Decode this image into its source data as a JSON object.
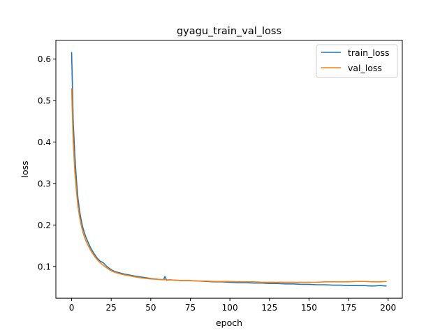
{
  "chart_data": {
    "type": "line",
    "title": "gyagu_train_val_loss",
    "xlabel": "epoch",
    "ylabel": "loss",
    "xlim": [
      -9.95,
      208.95
    ],
    "ylim": [
      0.0237,
      0.6456
    ],
    "xticks": [
      0,
      25,
      50,
      75,
      100,
      125,
      150,
      175,
      200
    ],
    "yticks": [
      0.1,
      0.2,
      0.3,
      0.4,
      0.5,
      0.6
    ],
    "ytick_labels": [
      "0.1",
      "0.2",
      "0.3",
      "0.4",
      "0.5",
      "0.6"
    ],
    "grid": false,
    "legend_position": "top-right",
    "series": [
      {
        "name": "train_loss",
        "color": "#1f77b4",
        "x": [
          0,
          1,
          2,
          3,
          4,
          5,
          6,
          7,
          8,
          9,
          10,
          12,
          14,
          16,
          18,
          20,
          22,
          24,
          26,
          28,
          30,
          33,
          36,
          40,
          45,
          50,
          55,
          58,
          59,
          60,
          62,
          65,
          70,
          75,
          80,
          85,
          90,
          95,
          100,
          105,
          110,
          115,
          120,
          125,
          130,
          135,
          140,
          145,
          150,
          155,
          160,
          165,
          170,
          175,
          180,
          185,
          190,
          195,
          199
        ],
        "values": [
          0.617,
          0.45,
          0.37,
          0.31,
          0.265,
          0.235,
          0.213,
          0.195,
          0.182,
          0.171,
          0.162,
          0.145,
          0.132,
          0.121,
          0.113,
          0.109,
          0.101,
          0.095,
          0.09,
          0.087,
          0.085,
          0.082,
          0.08,
          0.077,
          0.074,
          0.071,
          0.069,
          0.068,
          0.076,
          0.067,
          0.068,
          0.067,
          0.066,
          0.066,
          0.065,
          0.064,
          0.063,
          0.063,
          0.062,
          0.061,
          0.061,
          0.06,
          0.06,
          0.059,
          0.059,
          0.058,
          0.058,
          0.057,
          0.057,
          0.056,
          0.056,
          0.055,
          0.055,
          0.054,
          0.054,
          0.054,
          0.053,
          0.054,
          0.053
        ]
      },
      {
        "name": "val_loss",
        "color": "#ff7f0e",
        "x": [
          0,
          1,
          2,
          3,
          4,
          5,
          6,
          7,
          8,
          9,
          10,
          12,
          14,
          16,
          18,
          20,
          22,
          24,
          26,
          28,
          30,
          33,
          36,
          40,
          45,
          50,
          55,
          60,
          65,
          70,
          75,
          80,
          85,
          90,
          95,
          100,
          105,
          110,
          115,
          120,
          125,
          130,
          135,
          140,
          145,
          150,
          155,
          160,
          165,
          170,
          175,
          180,
          185,
          190,
          195,
          199
        ],
        "values": [
          0.53,
          0.4,
          0.33,
          0.283,
          0.245,
          0.22,
          0.2,
          0.185,
          0.172,
          0.162,
          0.154,
          0.139,
          0.127,
          0.117,
          0.109,
          0.103,
          0.097,
          0.092,
          0.088,
          0.085,
          0.083,
          0.08,
          0.078,
          0.075,
          0.072,
          0.07,
          0.069,
          0.068,
          0.067,
          0.066,
          0.066,
          0.065,
          0.065,
          0.064,
          0.064,
          0.064,
          0.063,
          0.063,
          0.063,
          0.062,
          0.062,
          0.062,
          0.062,
          0.062,
          0.062,
          0.062,
          0.062,
          0.063,
          0.063,
          0.063,
          0.063,
          0.064,
          0.064,
          0.063,
          0.063,
          0.064
        ]
      }
    ]
  }
}
